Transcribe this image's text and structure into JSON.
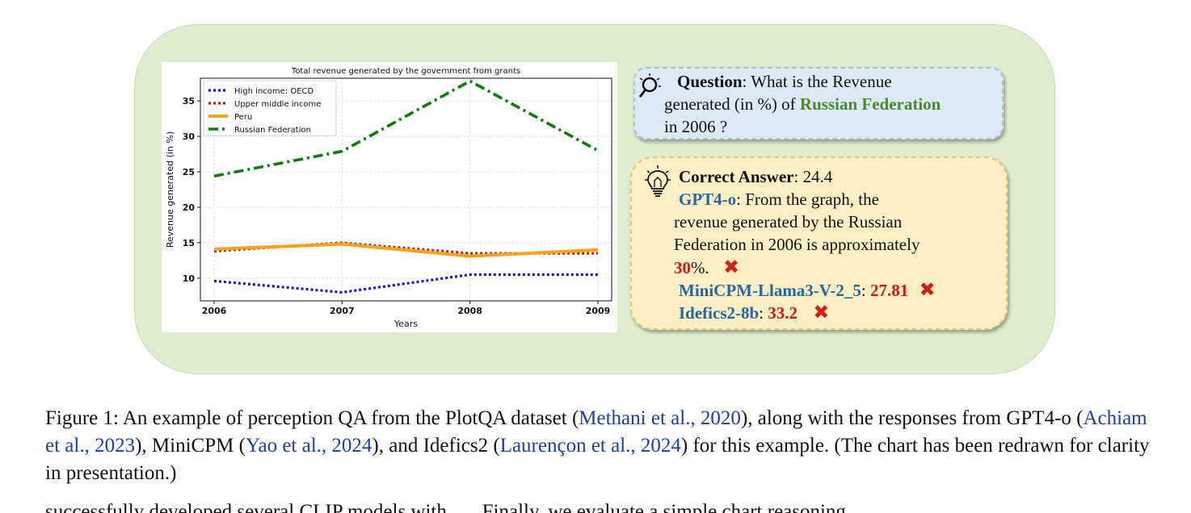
{
  "chart_data": {
    "type": "line",
    "title": "Total revenue generated by the government from grants",
    "xlabel": "Years",
    "ylabel": "Revenue generated (in %)",
    "categories": [
      "2006",
      "2007",
      "2008",
      "2009"
    ],
    "x": [
      2006,
      2007,
      2008,
      2009
    ],
    "ylim": [
      6.8,
      38.2
    ],
    "yticks": [
      10,
      15,
      20,
      25,
      30,
      35
    ],
    "grid": true,
    "legend_position": "top-left",
    "series": [
      {
        "name": "High income: OECD",
        "values": [
          9.6,
          8.0,
          10.5,
          10.5
        ],
        "color": "#1515d8",
        "style": "dotted"
      },
      {
        "name": "Upper middle income",
        "values": [
          13.8,
          15.0,
          13.5,
          13.5
        ],
        "color": "#a52a2a",
        "style": "dotted"
      },
      {
        "name": "Peru",
        "values": [
          14.1,
          14.8,
          13.1,
          14.0
        ],
        "color": "#ffa21a",
        "style": "solid"
      },
      {
        "name": "Russian Federation",
        "values": [
          24.4,
          27.9,
          37.8,
          28.0
        ],
        "color": "#0a7d0a",
        "style": "dashdot"
      }
    ]
  },
  "question": {
    "label": "Question",
    "text1": ": What is the Revenue",
    "text2": "generated (in %) of ",
    "entity": "Russian Federation",
    "text3": "in 2006 ?",
    "icon": "magnifier-icon"
  },
  "answer": {
    "label": "Correct Answer",
    "value": ": 24.4",
    "icon": "lightbulb-icon",
    "gpt_name": "GPT4-o",
    "gpt_text1": ": From the graph, the",
    "gpt_text2": "revenue generated by the Russian",
    "gpt_text3": "Federation in 2006 is approximately",
    "gpt_value": "30",
    "gpt_suffix": "%.",
    "minicpm_name": "MiniCPM-Llama3-V-2_5",
    "minicpm_sep": ": ",
    "minicpm_value": "27.81",
    "idefics_name": "Idefics2-8b",
    "idefics_sep": ": ",
    "idefics_value": "33.2",
    "wrong_mark": "✖"
  },
  "caption": {
    "p1": "Figure 1: An example of perception QA from the PlotQA dataset (",
    "cite1": "Methani et al., 2020",
    "p2": "), along with the responses from GPT4-o (",
    "cite2": "Achiam et al., 2023",
    "p3": "), MiniCPM (",
    "cite3": "Yao et al., 2024",
    "p4": "), and Idefics2 (",
    "cite4": "Laurençon et al., 2024",
    "p5": ") for this example. (The chart has been redrawn for clarity in presentation.)"
  },
  "next_text": "successfully developed several CLIP models with ..... Finally, we evaluate a simple chart reasoning ..."
}
